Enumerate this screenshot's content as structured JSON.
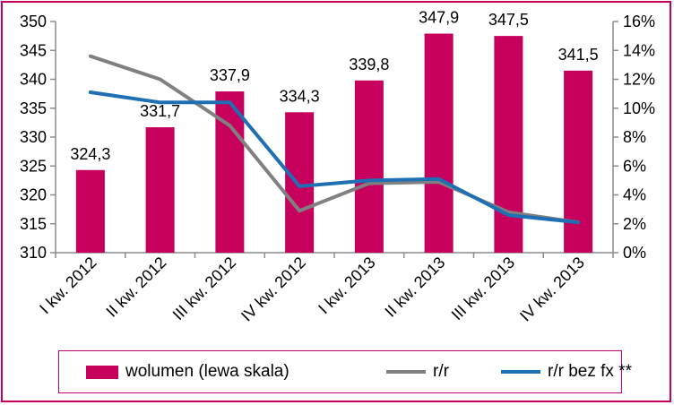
{
  "chart_data": {
    "type": "bar",
    "categories": [
      "I kw. 2012",
      "II kw. 2012",
      "III kw. 2012",
      "IV kw. 2012",
      "I kw. 2013",
      "II kw. 2013",
      "III kw. 2013",
      "IV kw. 2013"
    ],
    "series": [
      {
        "name": "wolumen (lewa skala)",
        "type": "bar",
        "axis": "left",
        "values": [
          324.3,
          331.7,
          337.9,
          334.3,
          339.8,
          347.9,
          347.5,
          341.5
        ],
        "data_labels": [
          "324,3",
          "331,7",
          "337,9",
          "334,3",
          "339,8",
          "347,9",
          "347,5",
          "341,5"
        ],
        "color": "#c7005e"
      },
      {
        "name": "r/r",
        "type": "line",
        "axis": "right",
        "values": [
          13.6,
          12.0,
          8.8,
          2.9,
          4.8,
          4.9,
          2.8,
          2.1
        ],
        "color": "#808080"
      },
      {
        "name": "r/r bez fx **",
        "type": "line",
        "axis": "right",
        "values": [
          11.1,
          10.4,
          10.4,
          4.6,
          5.0,
          5.1,
          2.6,
          2.1
        ],
        "color": "#1f6fb4"
      }
    ],
    "y_left": {
      "min": 310,
      "max": 350,
      "step": 5,
      "ticks": [
        "310",
        "315",
        "320",
        "325",
        "330",
        "335",
        "340",
        "345",
        "350"
      ]
    },
    "y_right": {
      "min": 0,
      "max": 16,
      "step": 2,
      "ticks": [
        "0%",
        "2%",
        "4%",
        "6%",
        "8%",
        "10%",
        "12%",
        "14%",
        "16%"
      ]
    },
    "grid": false,
    "legend_position": "bottom",
    "title": "",
    "xlabel": "",
    "ylabel": ""
  }
}
